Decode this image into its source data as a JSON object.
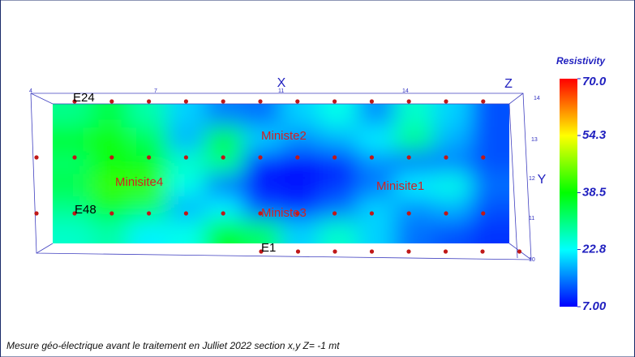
{
  "chart_data": {
    "type": "heatmap",
    "caption": "Mesure géo-électrique avant le traitement en Julliet 2022 section x,y Z= -1 mt",
    "x_label": "X",
    "y_label": "Y",
    "z_label": "Z",
    "x_axis_labels": [
      "4",
      "7",
      "11",
      "14"
    ],
    "y_axis_labels": [
      "14",
      "13",
      "12",
      "11",
      "10"
    ],
    "electrode_labels": [
      "E24",
      "E48",
      "E1"
    ],
    "annotations": [
      "Minisite4",
      "Ministe2",
      "Ministe3",
      "Minisite1"
    ],
    "colorbar_title": "Resistivity",
    "zlim": [
      7,
      70
    ],
    "colorbar_ticks": [
      {
        "value": 70,
        "label": "70.0"
      },
      {
        "value": 54.3,
        "label": "54.3"
      },
      {
        "value": 38.5,
        "label": "38.5"
      },
      {
        "value": 22.8,
        "label": "22.8"
      },
      {
        "value": 7,
        "label": "7.00"
      }
    ],
    "z": [
      [
        30,
        34,
        28,
        20,
        15,
        14,
        20,
        24,
        16,
        26,
        20,
        12
      ],
      [
        36,
        40,
        33,
        18,
        35,
        20,
        16,
        18,
        22,
        30,
        18,
        12
      ],
      [
        32,
        38,
        36,
        26,
        30,
        10,
        8,
        10,
        16,
        14,
        15,
        12
      ],
      [
        34,
        42,
        42,
        24,
        14,
        8,
        8,
        10,
        14,
        22,
        24,
        14
      ],
      [
        30,
        36,
        32,
        18,
        22,
        12,
        10,
        14,
        20,
        16,
        18,
        12
      ],
      [
        26,
        28,
        22,
        24,
        36,
        32,
        20,
        26,
        20,
        14,
        12,
        10
      ]
    ]
  }
}
